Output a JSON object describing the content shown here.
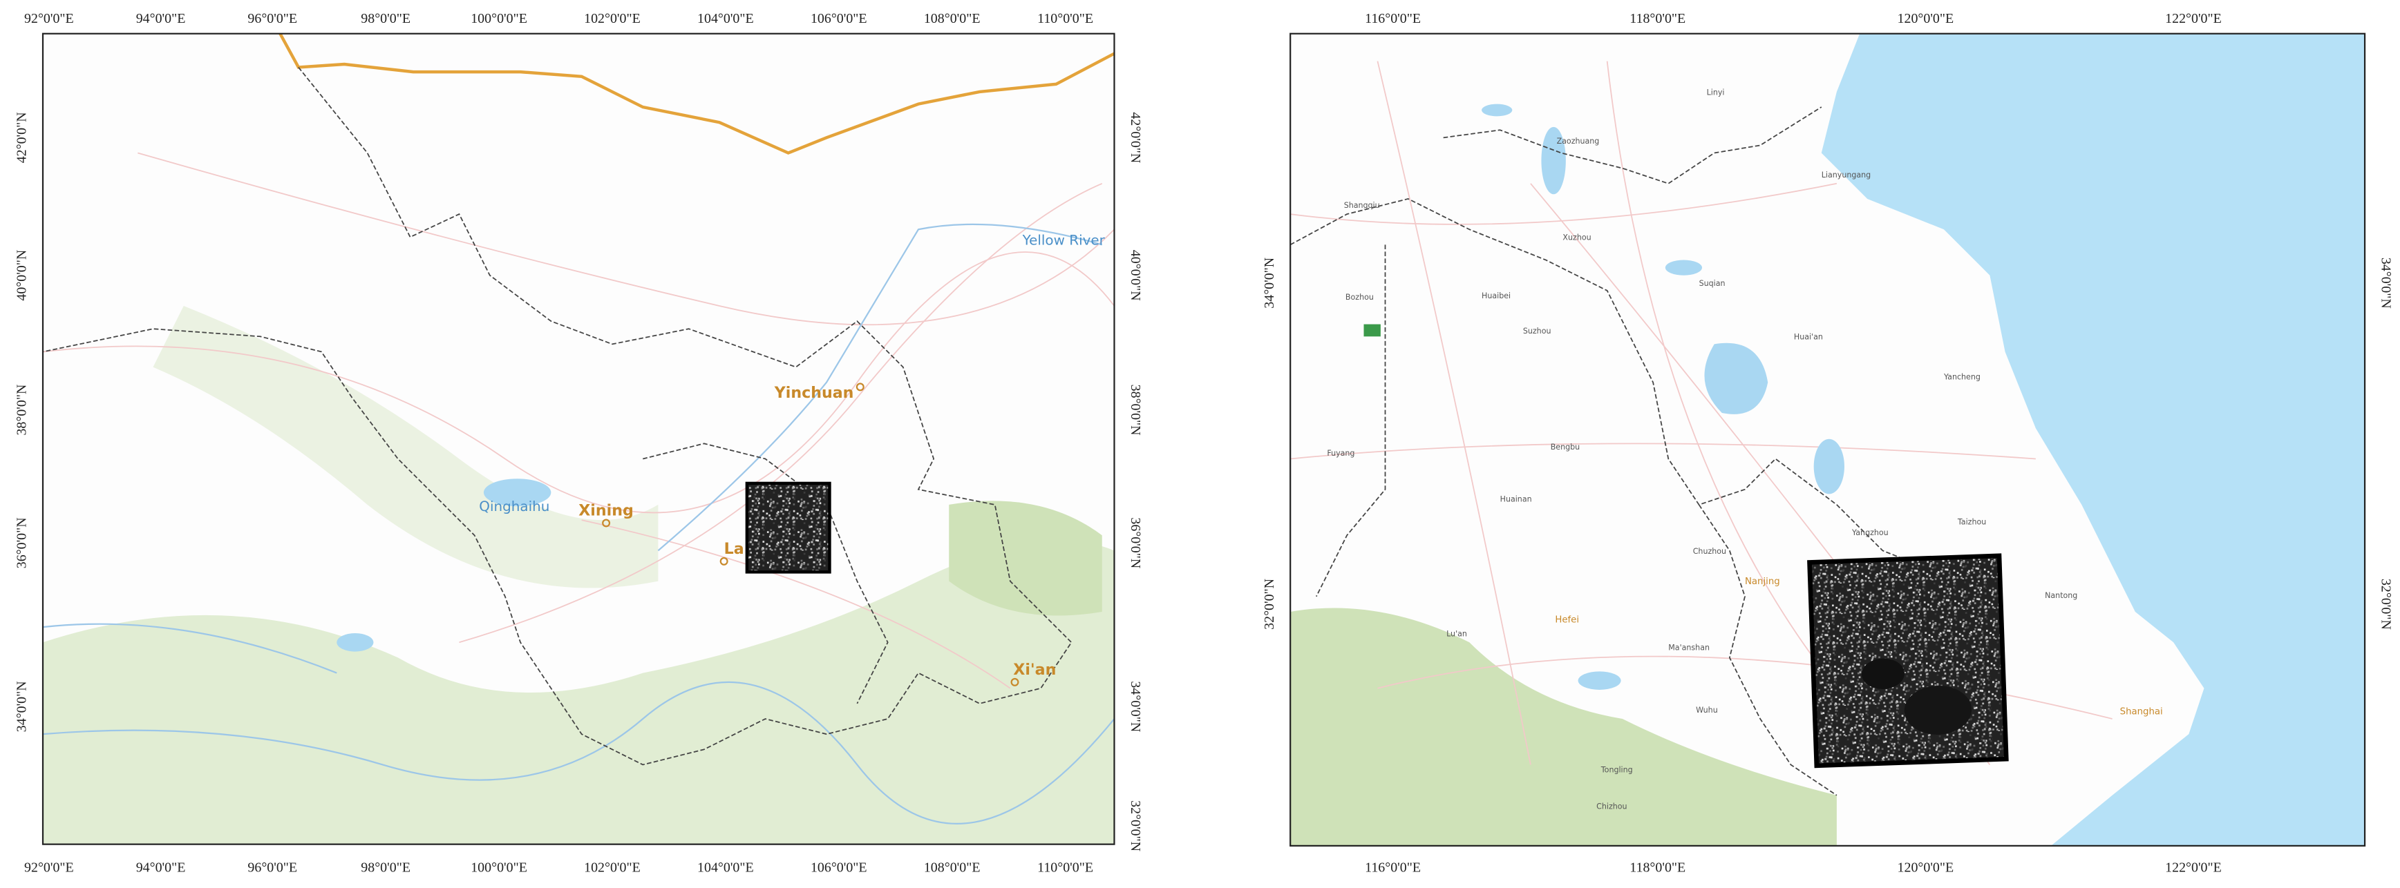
{
  "left_map": {
    "lon_labels": [
      "92°0'0\"E",
      "94°0'0\"E",
      "96°0'0\"E",
      "98°0'0\"E",
      "100°0'0\"E",
      "102°0'0\"E",
      "104°0'0\"E",
      "106°0'0\"E",
      "108°0'0\"E",
      "110°0'0\"E"
    ],
    "lat_labels": [
      "42°0'0\"N",
      "40°0'0\"N",
      "38°0'0\"N",
      "36°0'0\"N",
      "34°0'0\"N",
      "32°0'0\"N"
    ],
    "places": [
      {
        "label": "Yellow River"
      },
      {
        "label": "Yinchuan"
      },
      {
        "label": "Qinghaihu"
      },
      {
        "label": "Xining"
      },
      {
        "label": "La"
      },
      {
        "label": "Xi'an"
      }
    ]
  },
  "right_map": {
    "lon_labels": [
      "116°0'0\"E",
      "118°0'0\"E",
      "120°0'0\"E",
      "122°0'0\"E"
    ],
    "lat_labels": [
      "34°0'0\"N",
      "32°0'0\"N"
    ],
    "places": [
      {
        "label": "Linyi"
      },
      {
        "label": "Zaozhuang"
      },
      {
        "label": "Xuzhou"
      },
      {
        "label": "Lianyungang"
      },
      {
        "label": "Shangqiu"
      },
      {
        "label": "Bozhou"
      },
      {
        "label": "Huaibei"
      },
      {
        "label": "Suqian"
      },
      {
        "label": "Suzhou"
      },
      {
        "label": "Huai'an"
      },
      {
        "label": "Yancheng"
      },
      {
        "label": "Fuyang"
      },
      {
        "label": "Bengbu"
      },
      {
        "label": "Huainan"
      },
      {
        "label": "Chuzhou"
      },
      {
        "label": "Yangzhou"
      },
      {
        "label": "Nanjing"
      },
      {
        "label": "Hefei"
      },
      {
        "label": "Lu'an"
      },
      {
        "label": "Ma'anshan"
      },
      {
        "label": "Wuhu"
      },
      {
        "label": "Taizhou"
      },
      {
        "label": "Nantong"
      },
      {
        "label": "Shanghai"
      },
      {
        "label": "Tongling"
      },
      {
        "label": "Chizhou"
      }
    ]
  }
}
